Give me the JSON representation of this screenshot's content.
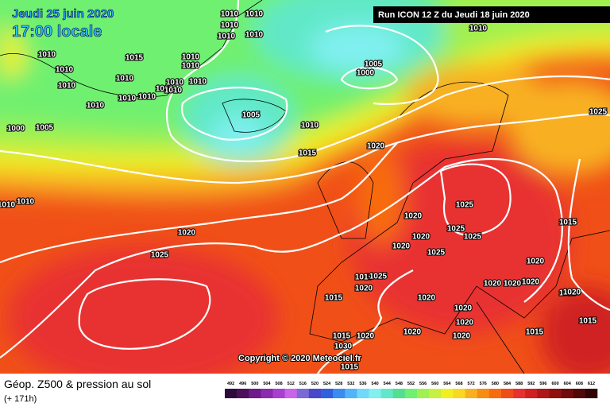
{
  "header": {
    "date": "Jeudi 25 juin 2020",
    "time": "17:00 locale",
    "run": "Run ICON 12 Z du Jeudi 18 juin 2020"
  },
  "copyright": "Copyright © 2020 Meteociel.fr",
  "footer": {
    "title": "Géop. Z500 & pression au sol",
    "lead": "(+ 171h)"
  },
  "legend": {
    "values": [
      492,
      496,
      500,
      504,
      508,
      512,
      516,
      520,
      524,
      528,
      532,
      536,
      540,
      544,
      548,
      552,
      556,
      560,
      564,
      568,
      572,
      576,
      580,
      584,
      588,
      592,
      596,
      600,
      604,
      608,
      612
    ],
    "colors": [
      "#2d0a3b",
      "#4b0f5c",
      "#6d1a8a",
      "#8b2bb0",
      "#a93fd0",
      "#c964e8",
      "#7a6ad6",
      "#4848c8",
      "#3060e0",
      "#3a8cf0",
      "#50b4f8",
      "#70d8f8",
      "#80f0f0",
      "#60e8c8",
      "#50e090",
      "#70f070",
      "#a0f050",
      "#c8f040",
      "#f0f020",
      "#f8d820",
      "#f8b020",
      "#f88c10",
      "#f86c10",
      "#f04c18",
      "#e83030",
      "#d02020",
      "#b01818",
      "#901010",
      "#700c0c",
      "#500808",
      "#300404"
    ]
  },
  "isobar_labels": [
    1010,
    1010,
    1010,
    1010,
    1010,
    1010,
    1010,
    1010,
    1010,
    1010,
    1010,
    1010,
    1010,
    1010,
    1010,
    1010,
    1010,
    1010,
    1010,
    1010,
    1010,
    1010,
    1015,
    1015,
    1015,
    1015,
    1015,
    1015,
    1015,
    1015,
    1015,
    1015,
    1005,
    1005,
    1005,
    1000,
    1000,
    1020,
    1020,
    1020,
    1020,
    1020,
    1020,
    1020,
    1020,
    1020,
    1020,
    1020,
    1020,
    1020,
    1020,
    1020,
    1020,
    1020,
    1025,
    1025,
    1025,
    1025,
    1025,
    1025,
    1025,
    1030
  ]
}
